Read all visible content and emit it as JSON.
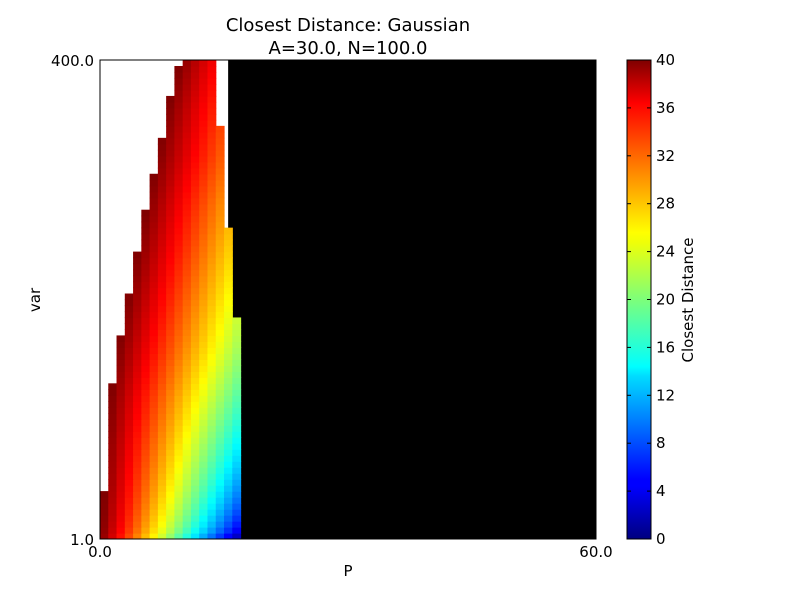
{
  "chart_data": {
    "type": "heatmap",
    "title": "Closest Distance: Gaussian",
    "subtitle": "A=30.0, N=100.0",
    "xlabel": "P",
    "ylabel": "var",
    "x_ticks": [
      "0.0",
      "60.0"
    ],
    "y_ticks": [
      "1.0",
      "400.0"
    ],
    "xlim": [
      0.0,
      60.0
    ],
    "ylim": [
      1.0,
      400.0
    ],
    "colorbar": {
      "label": "Closest Distance",
      "range": [
        0,
        40
      ],
      "ticks": [
        "0",
        "4",
        "8",
        "12",
        "16",
        "20",
        "24",
        "28",
        "32",
        "36",
        "40"
      ],
      "colormap": "jet"
    },
    "region_colors": {
      "undefined": "#ffffff",
      "saturated": "#000000"
    },
    "profile_note": "",
    "profile": {
      "var": [
        1,
        10,
        40,
        80,
        120,
        160,
        200,
        240,
        280,
        320,
        360,
        400
      ],
      "p_min": [
        0.0,
        0.2,
        0.5,
        0.8,
        1.3,
        2.2,
        3.3,
        4.5,
        5.7,
        7.0,
        8.2,
        9.7
      ],
      "p_max": [
        16.5,
        16.8,
        16.8,
        16.8,
        16.8,
        16.8,
        16.3,
        15.8,
        15.2,
        14.9,
        14.2,
        13.8
      ]
    }
  }
}
